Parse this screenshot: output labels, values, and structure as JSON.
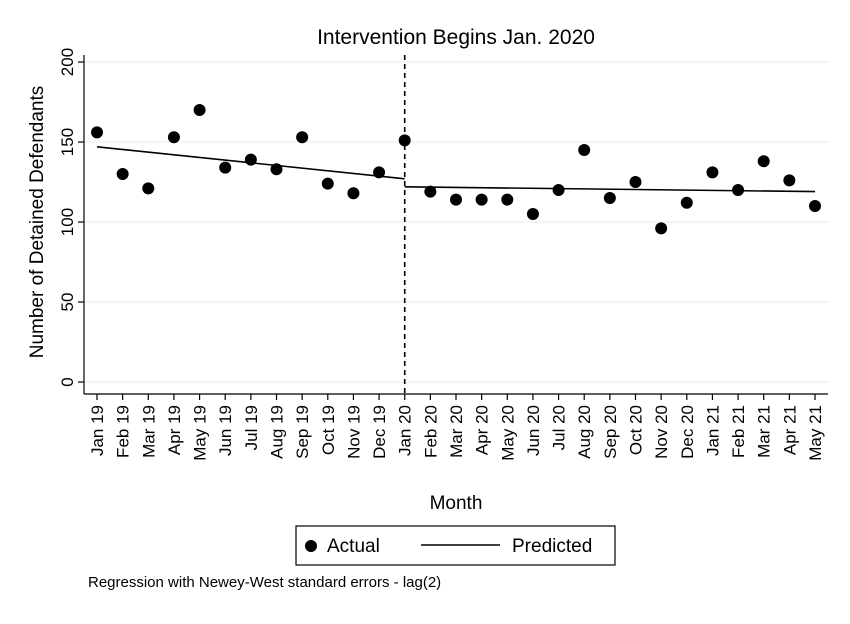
{
  "chart_data": {
    "type": "scatter",
    "title": "Intervention Begins Jan. 2020",
    "xlabel": "Month",
    "ylabel": "Number of Detained Defendants",
    "ylim": [
      0,
      200
    ],
    "yticks": [
      0,
      50,
      100,
      150,
      200
    ],
    "grid": true,
    "legend_position": "bottom-center",
    "intervention_label": "Jan 20",
    "categories": [
      "Jan 19",
      "Feb 19",
      "Mar 19",
      "Apr 19",
      "May 19",
      "Jun 19",
      "Jul 19",
      "Aug 19",
      "Sep 19",
      "Oct 19",
      "Nov 19",
      "Dec 19",
      "Jan 20",
      "Feb 20",
      "Mar 20",
      "Apr 20",
      "May 20",
      "Jun 20",
      "Jul 20",
      "Aug 20",
      "Sep 20",
      "Oct 20",
      "Nov 20",
      "Dec 20",
      "Jan 21",
      "Feb 21",
      "Mar 21",
      "Apr 21",
      "May 21"
    ],
    "series": [
      {
        "name": "Actual",
        "kind": "points",
        "color": "#000000",
        "values": [
          156,
          130,
          121,
          153,
          170,
          134,
          139,
          133,
          153,
          124,
          118,
          131,
          151,
          119,
          114,
          114,
          114,
          105,
          120,
          145,
          115,
          125,
          96,
          112,
          131,
          120,
          138,
          126,
          110
        ]
      },
      {
        "name": "Predicted",
        "kind": "segmented-line",
        "color": "#000000",
        "segments": [
          {
            "from": "Jan 19",
            "to": "Jan 20",
            "values": [
              147,
              127
            ]
          },
          {
            "from": "Jan 20",
            "to": "May 21",
            "values": [
              122,
              119
            ]
          }
        ]
      }
    ]
  },
  "footnote": "Regression with Newey-West standard errors - lag(2)"
}
